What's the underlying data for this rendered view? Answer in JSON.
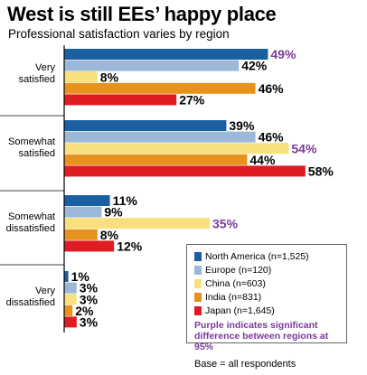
{
  "header": {
    "title": "West is still EEs’ happy place",
    "subtitle": "Professional satisfaction varies by region"
  },
  "chart_data": {
    "type": "bar",
    "orientation": "horizontal",
    "categories": [
      "Very satisfied",
      "Somewhat satisfied",
      "Somewhat dissatisfied",
      "Very dissatisfied"
    ],
    "category_label_lines": [
      [
        "Very",
        "satisfied"
      ],
      [
        "Somewhat",
        "satisfied"
      ],
      [
        "Somewhat",
        "dissatisfied"
      ],
      [
        "Very",
        "dissatisfied"
      ]
    ],
    "series": [
      {
        "name": "North America (n=1,525)",
        "color": "#1a5fa0",
        "values": [
          49,
          39,
          11,
          1
        ],
        "labels": [
          "49%",
          "39%",
          "11%",
          "1%"
        ]
      },
      {
        "name": "Europe (n=120)",
        "color": "#9bb8d9",
        "values": [
          42,
          46,
          9,
          3
        ],
        "labels": [
          "42%",
          "46%",
          "9%",
          "3%"
        ]
      },
      {
        "name": "China (n=603)",
        "color": "#f9e07f",
        "values": [
          8,
          54,
          35,
          3
        ],
        "labels": [
          "8%",
          "54%",
          "35%",
          "3%"
        ]
      },
      {
        "name": "India (n=831)",
        "color": "#e6921d",
        "values": [
          46,
          44,
          8,
          2
        ],
        "labels": [
          "46%",
          "44%",
          "8%",
          "2%"
        ]
      },
      {
        "name": "Japan (n=1,645)",
        "color": "#e01b24",
        "values": [
          27,
          58,
          12,
          3
        ],
        "labels": [
          "27%",
          "58%",
          "12%",
          "3%"
        ]
      }
    ],
    "significant": [
      [
        true,
        false,
        false,
        false,
        false
      ],
      [
        false,
        false,
        true,
        false,
        false
      ],
      [
        false,
        false,
        true,
        false,
        false
      ],
      [
        false,
        false,
        false,
        false,
        false
      ]
    ],
    "significant_color": "#7a3b9a",
    "xlim": [
      0,
      60
    ],
    "grid": false,
    "legend_position": "bottom-right",
    "legend_note": "Purple indicates significant difference between regions at 95%",
    "footnote": "Base = all respondents"
  }
}
